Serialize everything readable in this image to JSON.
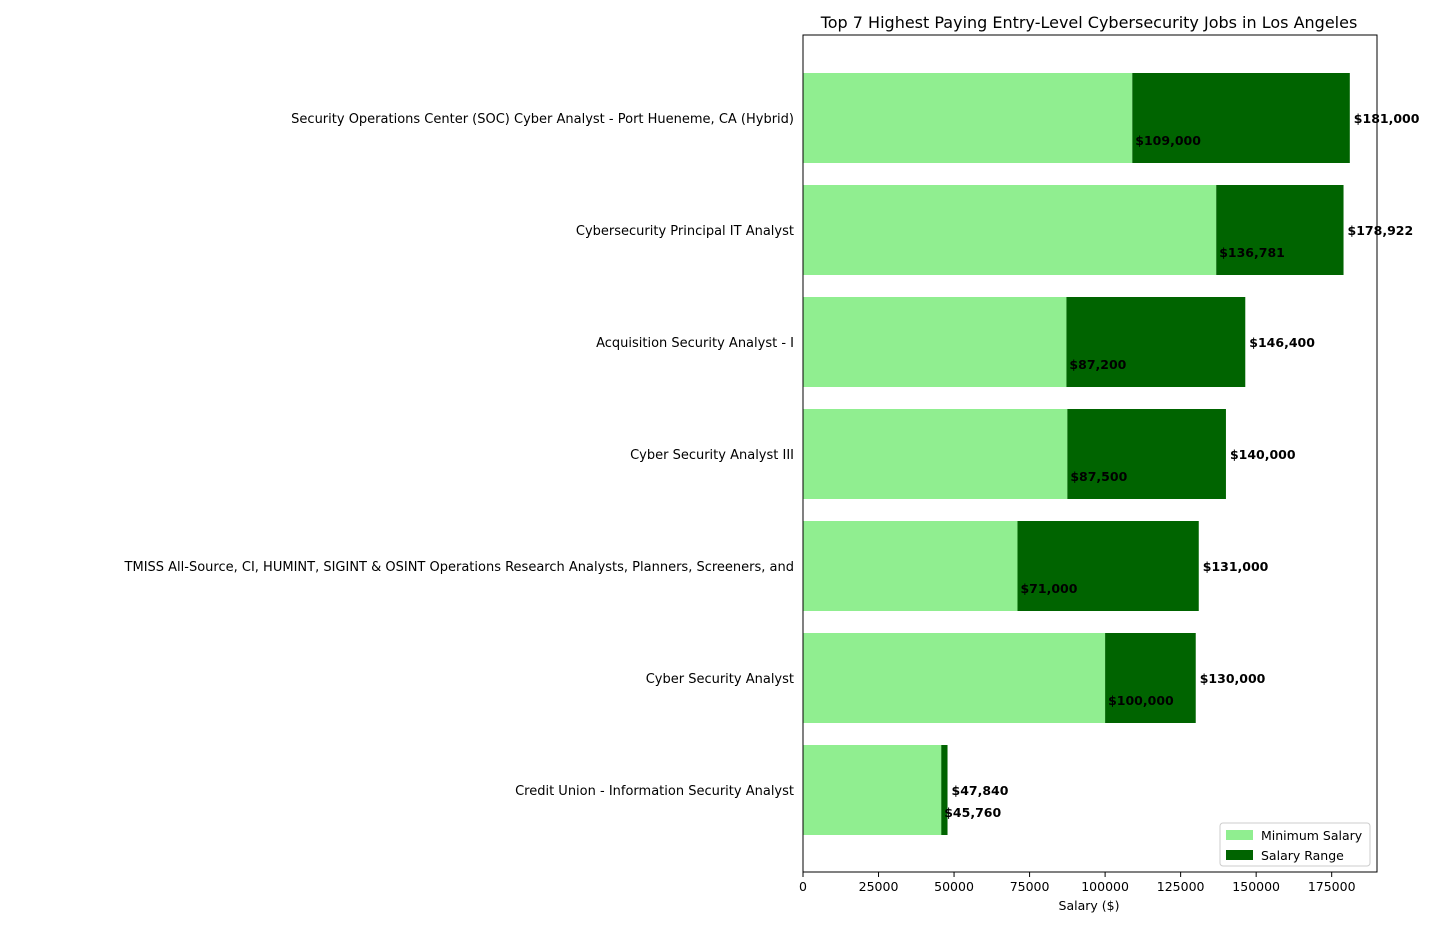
{
  "chart_data": {
    "type": "bar",
    "orientation": "horizontal",
    "stacked": true,
    "title": "Top 7 Highest Paying Entry-Level Cybersecurity Jobs in Los Angeles",
    "xlabel": "Salary ($)",
    "ylabel": "",
    "xlim": [
      0,
      190000
    ],
    "xticks": [
      0,
      25000,
      50000,
      75000,
      100000,
      125000,
      150000,
      175000
    ],
    "xtick_labels": [
      "0",
      "25000",
      "50000",
      "75000",
      "100000",
      "125000",
      "150000",
      "175000"
    ],
    "grid": false,
    "legend_position": "bottom-right",
    "categories": [
      "Security Operations Center (SOC) Cyber Analyst - Port Hueneme, CA (Hybrid)",
      "Cybersecurity Principal IT Analyst",
      "Acquisition Security Analyst - I",
      "Cyber Security Analyst III",
      "TMISS All-Source, CI, HUMINT, SIGINT & OSINT Operations Research Analysts, Planners, Screeners, and",
      "Cyber Security Analyst",
      "Credit Union - Information Security Analyst"
    ],
    "min_values": [
      109000,
      136781,
      87200,
      87500,
      71000,
      100000,
      45760
    ],
    "max_values": [
      181000,
      178922,
      146400,
      140000,
      131000,
      130000,
      47840
    ],
    "min_labels": [
      "$109,000",
      "$136,781",
      "$87,200",
      "$87,500",
      "$71,000",
      "$100,000",
      "$45,760"
    ],
    "max_labels": [
      "$181,000",
      "$178,922",
      "$146,400",
      "$140,000",
      "$131,000",
      "$130,000",
      "$47,840"
    ],
    "series": [
      {
        "name": "Minimum Salary",
        "color": "#90ee90"
      },
      {
        "name": "Salary Range",
        "color": "#006400"
      }
    ]
  }
}
